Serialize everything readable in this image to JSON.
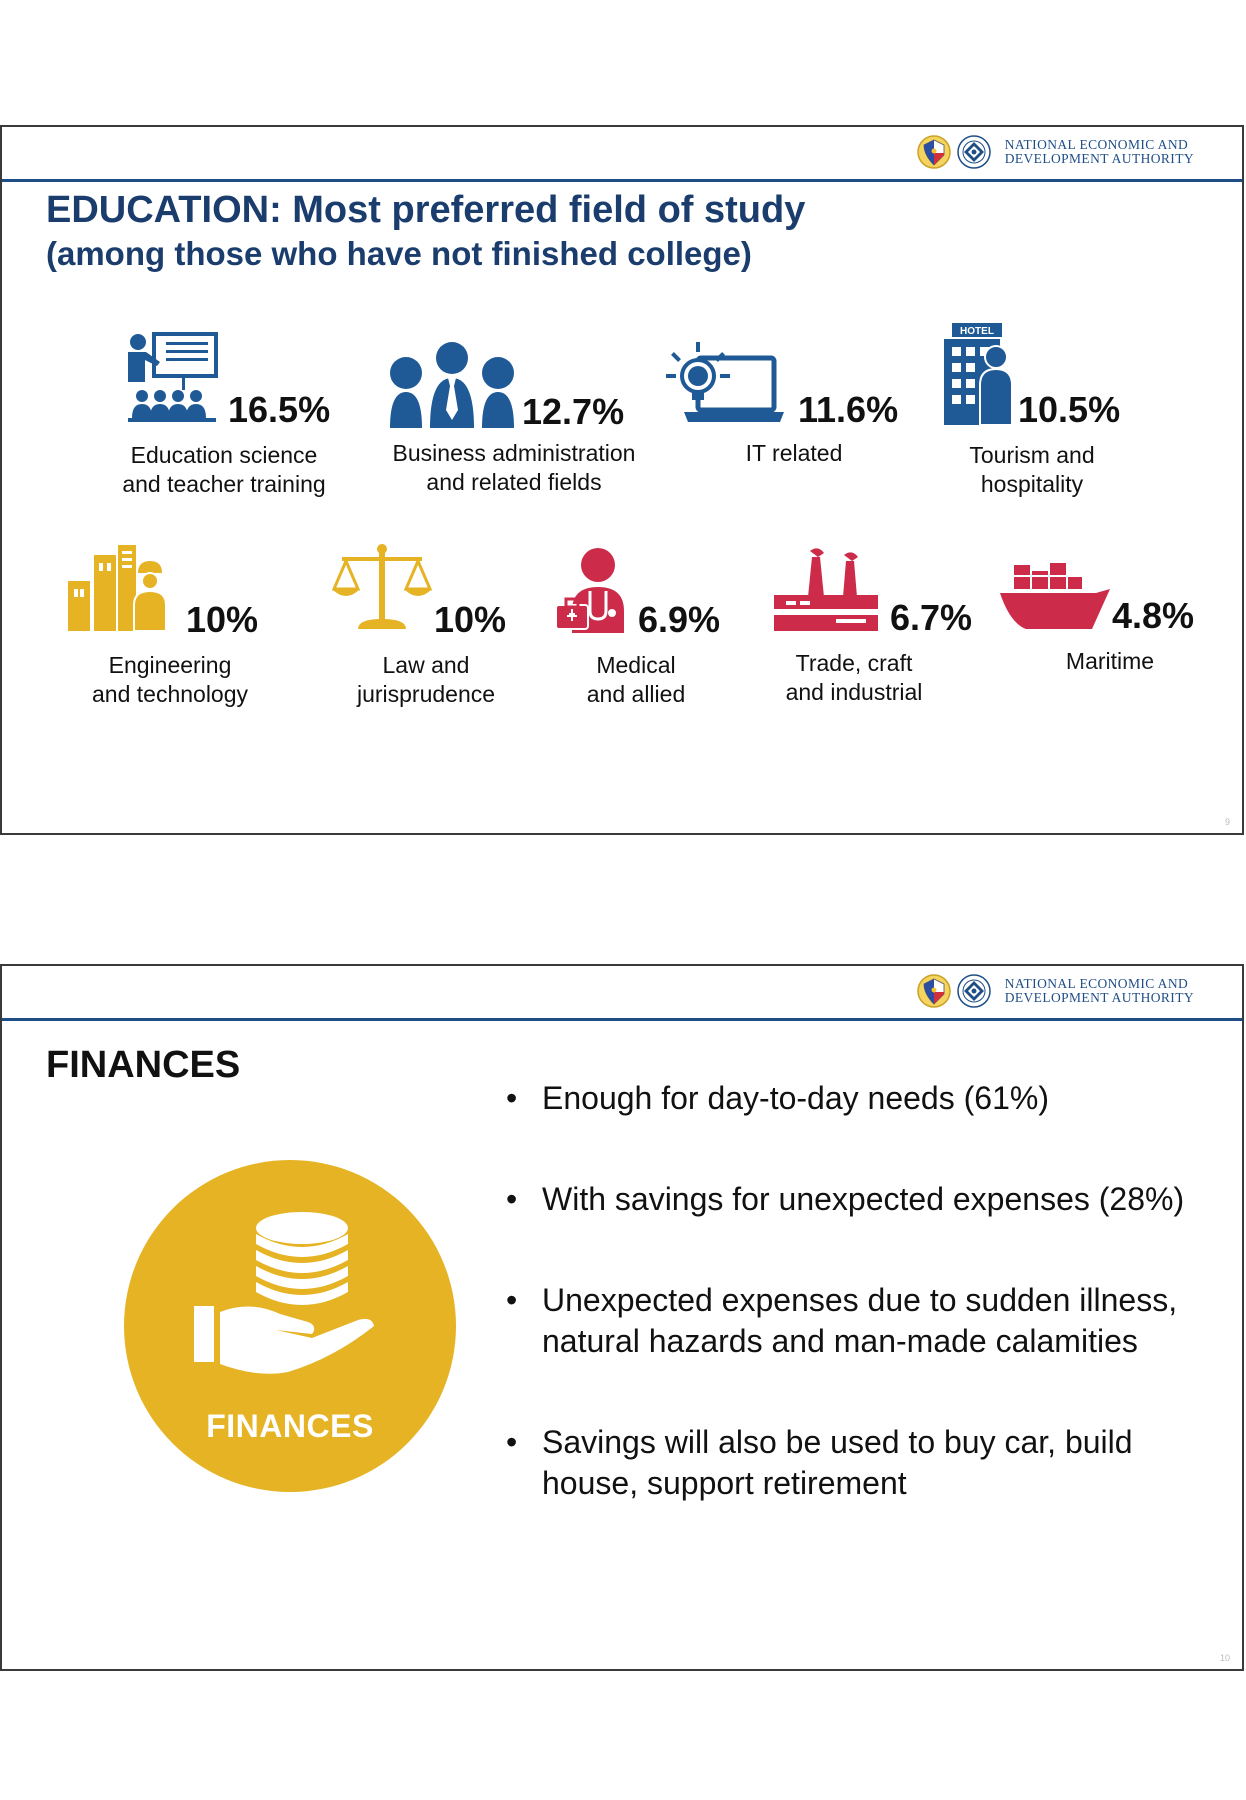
{
  "header": {
    "org_line1": "NATIONAL ECONOMIC AND",
    "org_line2": "DEVELOPMENT AUTHORITY"
  },
  "slide1": {
    "title": "EDUCATION: Most preferred field of study",
    "subtitle": "(among those who have not finished college)",
    "fields": [
      {
        "pct": "16.5%",
        "line1": "Education science",
        "line2": "and teacher training",
        "icon": "teacher-icon",
        "color": "#1f5a96"
      },
      {
        "pct": "12.7%",
        "line1": "Business administration",
        "line2": "and related fields",
        "icon": "business-people-icon",
        "color": "#1f5a96"
      },
      {
        "pct": "11.6%",
        "line1": "IT related",
        "line2": "",
        "icon": "laptop-lightbulb-icon",
        "color": "#1f5a96"
      },
      {
        "pct": "10.5%",
        "line1": "Tourism and",
        "line2": "hospitality",
        "icon": "hotel-icon",
        "color": "#1f5a96",
        "icon_text": "HOTEL"
      },
      {
        "pct": "10%",
        "line1": "Engineering",
        "line2": "and technology",
        "icon": "engineer-icon",
        "color": "#e5b323"
      },
      {
        "pct": "10%",
        "line1": "Law and",
        "line2": "jurisprudence",
        "icon": "scales-icon",
        "color": "#e5b323"
      },
      {
        "pct": "6.9%",
        "line1": "Medical",
        "line2": "and allied",
        "icon": "doctor-icon",
        "color": "#cc2b4a"
      },
      {
        "pct": "6.7%",
        "line1": "Trade, craft",
        "line2": "and industrial",
        "icon": "factory-icon",
        "color": "#cc2b4a"
      },
      {
        "pct": "4.8%",
        "line1": "Maritime",
        "line2": "",
        "icon": "ship-icon",
        "color": "#cc2b4a"
      }
    ],
    "page_number": "9"
  },
  "slide2": {
    "title": "FINANCES",
    "circle_label": "FINANCES",
    "circle_icon": "coins-hand-icon",
    "bullets": [
      "Enough for day-to-day needs (61%)",
      "With savings for unexpected expenses (28%)",
      "Unexpected expenses due to sudden illness, natural hazards and man-made calamities",
      "Savings will also be used to buy car, build house, support retirement"
    ],
    "page_number": "10"
  }
}
